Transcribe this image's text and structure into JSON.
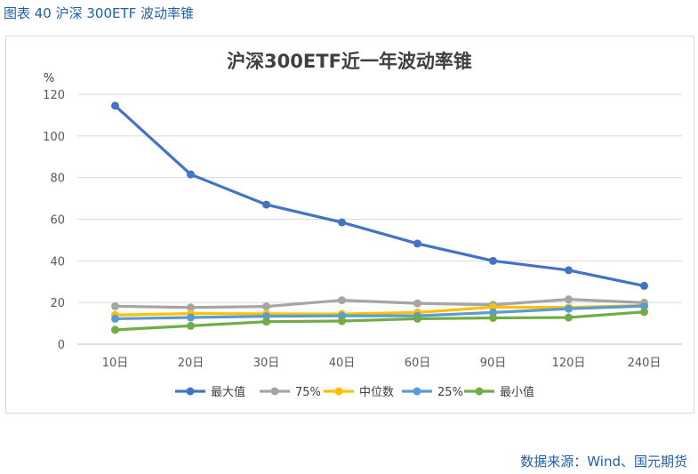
{
  "caption": "图表 40 沪深 300ETF 波动率锥",
  "source": "数据来源：Wind、国元期货",
  "chart_data": {
    "type": "line",
    "title": "沪深300ETF近一年波动率锥",
    "ylabel": "%",
    "xlabel": "",
    "categories": [
      "10日",
      "20日",
      "30日",
      "40日",
      "60日",
      "90日",
      "120日",
      "240日"
    ],
    "ylim": [
      0,
      120
    ],
    "yticks": [
      0,
      20,
      40,
      60,
      80,
      100,
      120
    ],
    "grid": true,
    "legend": "bottom",
    "series": [
      {
        "name": "最大值",
        "color": "#4472c4",
        "values": [
          114.5,
          81.5,
          67,
          58.5,
          48.3,
          40,
          35.5,
          28
        ]
      },
      {
        "name": "75%",
        "color": "#a5a5a5",
        "values": [
          18.2,
          17.6,
          18.1,
          21.1,
          19.6,
          18.9,
          21.5,
          19.9
        ]
      },
      {
        "name": "中位数",
        "color": "#ffc000",
        "values": [
          14,
          14.7,
          14.6,
          14.5,
          15.2,
          17.8,
          17.6,
          18.6
        ]
      },
      {
        "name": "25%",
        "color": "#5b9bd5",
        "values": [
          12.2,
          12.8,
          13.4,
          13.6,
          13.6,
          15.2,
          17,
          18.3
        ]
      },
      {
        "name": "最小值",
        "color": "#70ad47",
        "values": [
          6.9,
          8.8,
          10.8,
          11.1,
          12.2,
          12.6,
          12.8,
          15.5
        ]
      }
    ]
  }
}
